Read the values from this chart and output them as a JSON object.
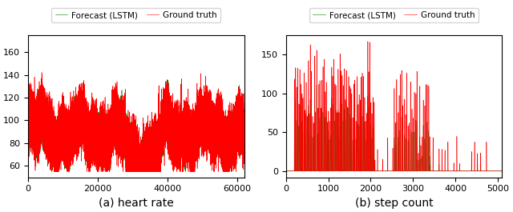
{
  "heart_rate": {
    "n_points": 62000,
    "x_max": 62000,
    "ylim": [
      50,
      175
    ],
    "yticks": [
      60,
      80,
      100,
      120,
      140,
      160
    ],
    "xticks": [
      0,
      20000,
      40000,
      60000
    ],
    "xlabel": "(a) heart rate"
  },
  "step_count": {
    "n_points": 5100,
    "x_max": 5100,
    "ylim": [
      -8,
      175
    ],
    "yticks": [
      0,
      50,
      100,
      150
    ],
    "xticks": [
      0,
      1000,
      2000,
      3000,
      4000,
      5000
    ],
    "xlabel": "(b) step count"
  },
  "colors": {
    "ground_truth": "#ff0000",
    "forecast": "#008000"
  },
  "legend": {
    "ground_truth": "Ground truth",
    "forecast": "Forecast (LSTM)"
  },
  "linewidth": 0.4,
  "figsize": [
    6.4,
    2.65
  ],
  "dpi": 100
}
